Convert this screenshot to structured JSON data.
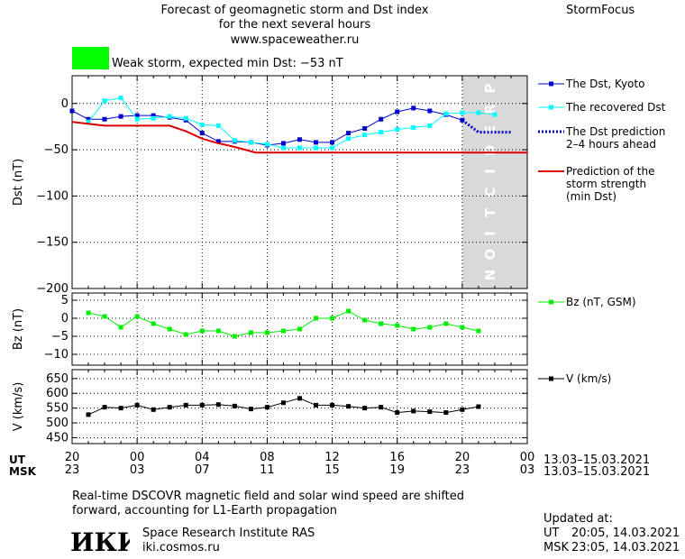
{
  "header": {
    "title_line1": "Forecast of geomagnetic storm and Dst index",
    "title_line2": "for the next several hours",
    "url": "www.spaceweather.ru",
    "brand": "StormFocus",
    "storm_label": "Weak storm, expected min Dst: −53 nT",
    "storm_color": "#00ff00"
  },
  "colors": {
    "dst_kyoto": "#0000cc",
    "dst_recovered": "#00ffff",
    "dst_prediction": "#0000cc",
    "storm_strength": "#dd0000",
    "bz": "#00ee00",
    "speed": "#000000",
    "prediction_band": "#d9d9d9"
  },
  "prediction_band_label": "PREDICTION",
  "time_axis": {
    "row_ut_label": "UT",
    "row_msk_label": "MSK",
    "ut_ticks": [
      "20",
      "00",
      "04",
      "08",
      "12",
      "16",
      "20",
      "00"
    ],
    "msk_ticks": [
      "23",
      "03",
      "07",
      "11",
      "15",
      "19",
      "23",
      "03"
    ],
    "date_range_ut": "13.03–15.03.2021",
    "date_range_msk": "13.03–15.03.2021"
  },
  "chart_data": [
    {
      "type": "line",
      "panel": "dst",
      "ylabel": "Dst (nT)",
      "ylim": [
        -200,
        30
      ],
      "yticks": [
        0,
        -50,
        -100,
        -150,
        -200
      ],
      "ytick_labels": [
        "0",
        "−50",
        "−100",
        "−150",
        "−200"
      ],
      "x_unit": "hours from 20 UT, 13.03.2021",
      "xlim": [
        0,
        28
      ],
      "prediction_start": 24.0,
      "series": [
        {
          "name": "The Dst, Kyoto",
          "marker": "square",
          "x": [
            0,
            1,
            2,
            3,
            4,
            5,
            6,
            7,
            8,
            9,
            10,
            11,
            12,
            13,
            14,
            15,
            16,
            17,
            18,
            19,
            20,
            21,
            22,
            23,
            24
          ],
          "y": [
            -8,
            -17,
            -17,
            -14,
            -13,
            -13,
            -15,
            -18,
            -32,
            -41,
            -41,
            -42,
            -45,
            -43,
            -39,
            -42,
            -42,
            -32,
            -27,
            -17,
            -9,
            -5,
            -8,
            -12,
            -18
          ]
        },
        {
          "name": "The recovered Dst",
          "marker": "square",
          "x": [
            1,
            2,
            3,
            4,
            5,
            6,
            7,
            8,
            9,
            10,
            11,
            12,
            13,
            14,
            15,
            16,
            17,
            18,
            19,
            20,
            21,
            22,
            23,
            24,
            25,
            26
          ],
          "y": [
            -20,
            3,
            6,
            -17,
            -16,
            -14,
            -16,
            -23,
            -24,
            -40,
            -42,
            -44,
            -48,
            -48,
            -48,
            -48,
            -38,
            -34,
            -31,
            -28,
            -26,
            -24,
            -11,
            -10,
            -10,
            -12
          ]
        },
        {
          "name": "The Dst prediction",
          "name_line2": "2–4 hours ahead",
          "marker": "none",
          "x": [
            24,
            25,
            26,
            27
          ],
          "y": [
            -18,
            -31,
            -31,
            -31
          ]
        },
        {
          "name": "Prediction of the",
          "name_line2": "storm strength",
          "name_line3": "(min Dst)",
          "marker": "none",
          "x": [
            0,
            2,
            4,
            6,
            7,
            8,
            9,
            10,
            11.3,
            28
          ],
          "y": [
            -20,
            -24,
            -24,
            -24,
            -30,
            -38,
            -43,
            -47,
            -53,
            -53
          ]
        }
      ]
    },
    {
      "type": "line",
      "panel": "bz",
      "ylabel": "Bz (nT)",
      "ylim": [
        -13,
        7
      ],
      "yticks": [
        5,
        0,
        -5,
        -10
      ],
      "ytick_labels": [
        "5",
        "0",
        "−5",
        "−10"
      ],
      "x_unit": "hours from 20 UT, 13.03.2021",
      "xlim": [
        0,
        28
      ],
      "series": [
        {
          "name": "Bz (nT, GSM)",
          "marker": "square",
          "x": [
            1,
            2,
            3,
            4,
            5,
            6,
            7,
            8,
            9,
            10,
            11,
            12,
            13,
            14,
            15,
            16,
            17,
            18,
            19,
            20,
            21,
            22,
            23,
            24,
            25
          ],
          "y": [
            1.5,
            0.5,
            -2.5,
            0.5,
            -1.5,
            -3,
            -4.5,
            -3.5,
            -3.5,
            -5,
            -4,
            -4,
            -3.5,
            -3,
            0,
            0,
            2,
            -0.5,
            -1.5,
            -2,
            -3,
            -2.5,
            -1.5,
            -2.5,
            -3.5
          ]
        }
      ]
    },
    {
      "type": "line",
      "panel": "speed",
      "ylabel": "V (km/s)",
      "ylim": [
        430,
        680
      ],
      "yticks": [
        650,
        600,
        550,
        500,
        450
      ],
      "ytick_labels": [
        "650",
        "600",
        "550",
        "500",
        "450"
      ],
      "x_unit": "hours from 20 UT, 13.03.2021",
      "xlim": [
        0,
        28
      ],
      "series": [
        {
          "name": "V (km/s)",
          "marker": "square",
          "x": [
            1,
            2,
            3,
            4,
            5,
            6,
            7,
            8,
            9,
            10,
            11,
            12,
            13,
            14,
            15,
            16,
            17,
            18,
            19,
            20,
            21,
            22,
            23,
            24,
            25
          ],
          "y": [
            528,
            553,
            550,
            560,
            545,
            553,
            560,
            560,
            562,
            557,
            547,
            553,
            568,
            583,
            560,
            560,
            556,
            550,
            553,
            535,
            540,
            538,
            535,
            545,
            555
          ]
        }
      ]
    }
  ],
  "footer": {
    "note_line1": "Real-time DSCOVR magnetic field and solar wind speed are shifted",
    "note_line2": "forward, accounting for L1-Earth propagation",
    "institute": "Space Research Institute RAS",
    "site": "iki.cosmos.ru",
    "logo_text": "ИКИ",
    "updated_label": "Updated at:",
    "updated_ut_label": "UT",
    "updated_ut": "20:05, 14.03.2021",
    "updated_msk_label": "MSK",
    "updated_msk": "23:05, 14.03.2021"
  }
}
